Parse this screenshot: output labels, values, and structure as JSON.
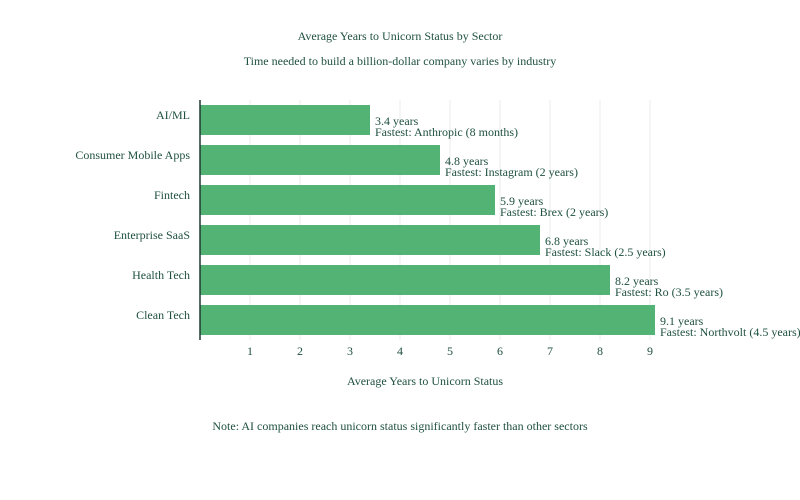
{
  "chart_data": {
    "type": "bar",
    "orientation": "horizontal",
    "title": "Average Years to Unicorn Status by Sector",
    "subtitle": "Time needed to build a billion-dollar company varies by industry",
    "xlabel": "Average Years to Unicorn Status",
    "ylabel": "",
    "xlim": [
      0,
      9.1
    ],
    "xticks": [
      1,
      2,
      3,
      4,
      5,
      6,
      7,
      8,
      9
    ],
    "grid": true,
    "bar_color": "#52b374",
    "categories": [
      "AI/ML",
      "Consumer Mobile Apps",
      "Fintech",
      "Enterprise SaaS",
      "Health Tech",
      "Clean Tech"
    ],
    "values": [
      3.4,
      4.8,
      5.9,
      6.8,
      8.2,
      9.1
    ],
    "value_labels": [
      "3.4 years",
      "4.8 years",
      "5.9 years",
      "6.8 years",
      "8.2 years",
      "9.1 years"
    ],
    "fastest_labels": [
      "Fastest: Anthropic (8 months)",
      "Fastest: Instagram (2 years)",
      "Fastest: Brex (2 years)",
      "Fastest: Slack (2.5 years)",
      "Fastest: Ro (3.5 years)",
      "Fastest: Northvolt (4.5 years)"
    ],
    "annotation": "Note: AI companies reach unicorn status significantly faster than other sectors"
  }
}
